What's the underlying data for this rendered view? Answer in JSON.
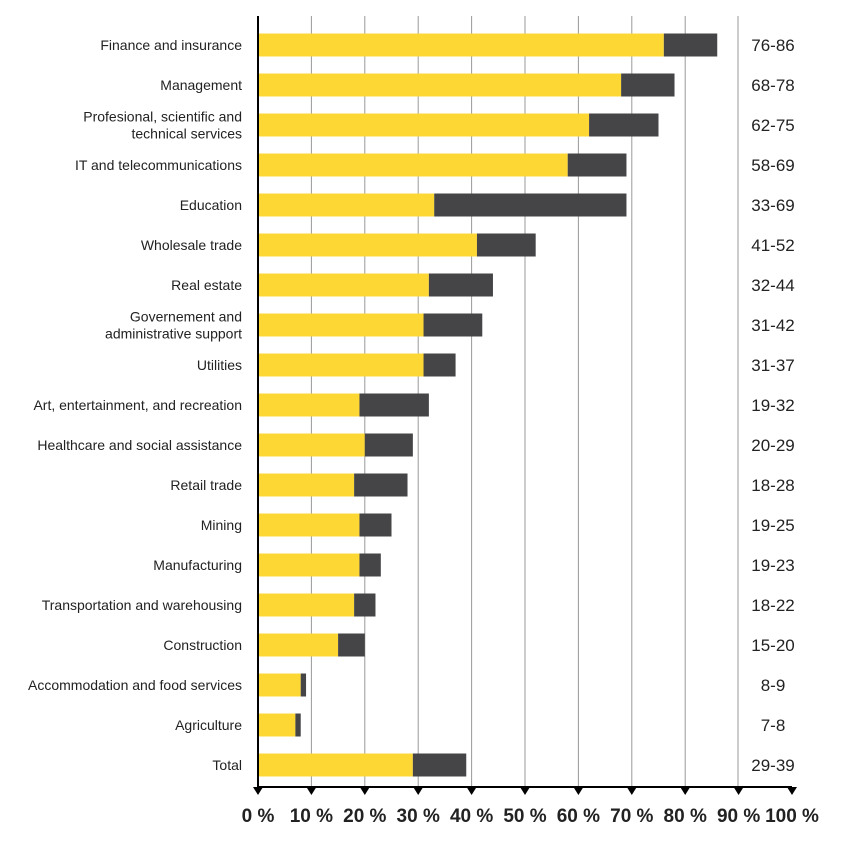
{
  "chart_data": {
    "type": "bar",
    "stacked": true,
    "orientation": "horizontal",
    "categories": [
      "Finance and insurance",
      "Management",
      "Profesional, scientific and\ntechnical services",
      "IT and telecommunications",
      "Education",
      "Wholesale trade",
      "Real estate",
      "Governement and\nadministrative support",
      "Utilities",
      "Art, entertainment, and recreation",
      "Healthcare and social assistance",
      "Retail trade",
      "Mining",
      "Manufacturing",
      "Transportation and warehousing",
      "Construction",
      "Accommodation and food services",
      "Agriculture",
      "Total"
    ],
    "low": [
      76,
      68,
      62,
      58,
      33,
      41,
      32,
      31,
      31,
      19,
      20,
      18,
      19,
      19,
      18,
      15,
      8,
      7,
      29
    ],
    "high": [
      86,
      78,
      75,
      69,
      69,
      52,
      44,
      42,
      37,
      32,
      29,
      28,
      25,
      23,
      22,
      20,
      9,
      8,
      39
    ],
    "range_labels": [
      "76-86",
      "68-78",
      "62-75",
      "58-69",
      "33-69",
      "41-52",
      "32-44",
      "31-42",
      "31-37",
      "19-32",
      "20-29",
      "18-28",
      "19-25",
      "19-23",
      "18-22",
      "15-20",
      "8-9",
      "7-8",
      "29-39"
    ],
    "x_ticks": [
      "0 %",
      "10 %",
      "20 %",
      "30 %",
      "40 %",
      "50 %",
      "60 %",
      "70 %",
      "80 %",
      "90 %",
      "100 %"
    ],
    "xlim": [
      0,
      100
    ],
    "grid": true,
    "colors": {
      "low": "#FDD835",
      "high": "#454547",
      "grid": "#999999",
      "axis": "#000000"
    }
  }
}
